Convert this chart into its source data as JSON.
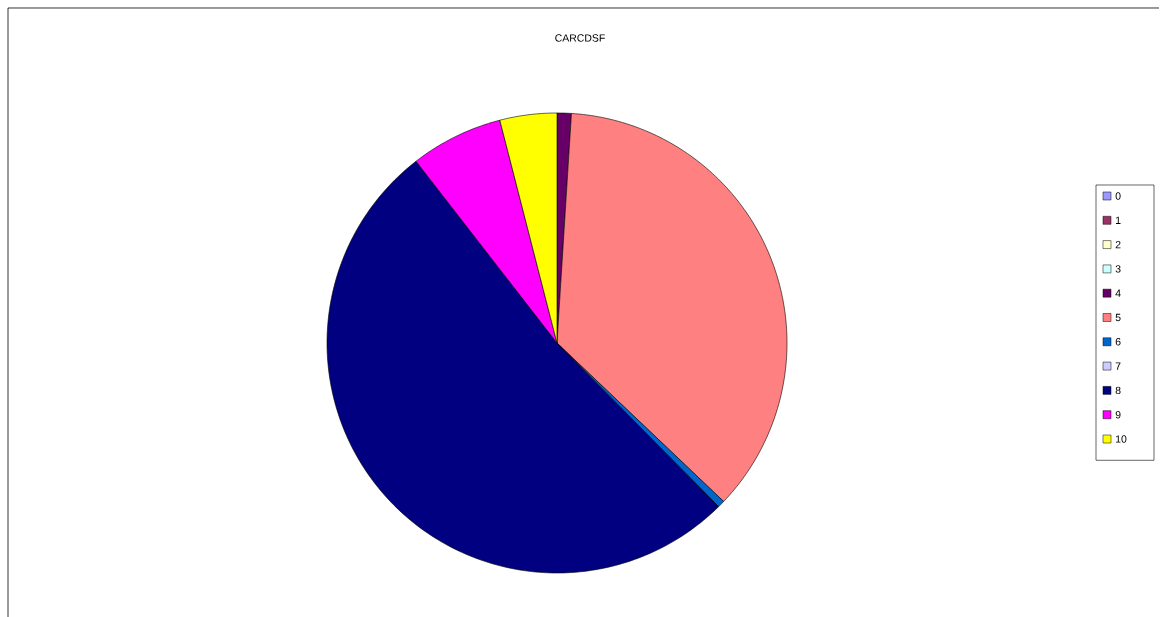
{
  "chart_data": {
    "type": "pie",
    "title": "CARCDSF",
    "categories": [
      "0",
      "1",
      "2",
      "3",
      "4",
      "5",
      "6",
      "7",
      "8",
      "9",
      "10"
    ],
    "values": [
      0,
      0,
      0,
      0,
      1,
      36.1,
      0.5,
      0,
      51.9,
      6.5,
      4
    ],
    "colors": [
      "#9999ff",
      "#993366",
      "#ffffcc",
      "#ccffff",
      "#660066",
      "#ff8080",
      "#0066cc",
      "#ccccff",
      "#000080",
      "#ff00ff",
      "#ffff00"
    ],
    "legend": "right"
  }
}
